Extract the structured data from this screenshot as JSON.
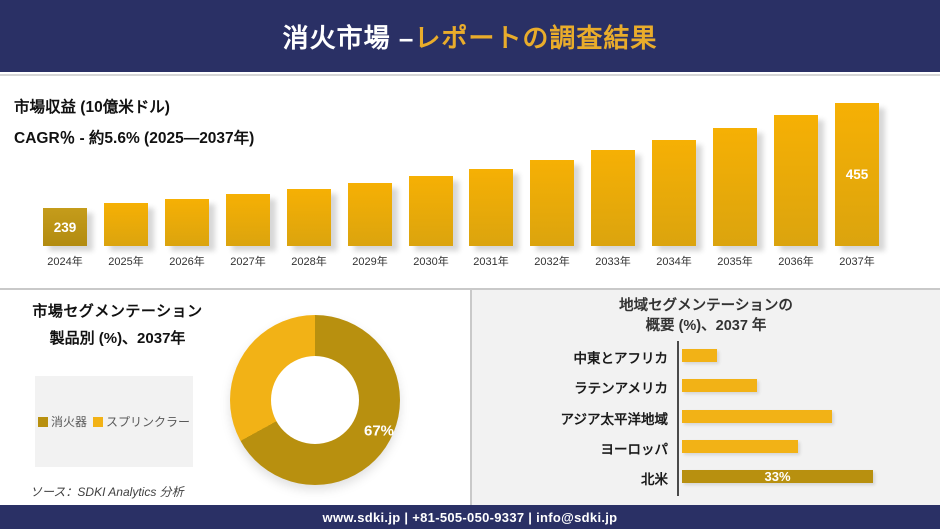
{
  "header": {
    "title_white": "消火市場 –",
    "title_gold": "レポートの調査結果"
  },
  "footer": {
    "text": "www.sdki.jp | +81-505-050-9337 | info@sdki.jp"
  },
  "product_chart": {
    "title_line1": "市場セグメンテーション",
    "title_line2": "製品別 (%)、2037年",
    "legend": [
      {
        "label": "消火器",
        "color": "#B8900F"
      },
      {
        "label": "スプリンクラー",
        "color": "#F2B216"
      }
    ],
    "source": "ソース：SDKI Analytics 分析"
  },
  "regional_chart": {
    "title_line1": "地域セグメンテーションの",
    "title_line2": "概要 (%)、2037 年"
  },
  "colors": {
    "navy": "#2A3065",
    "gold_dark": "#B8900F",
    "amber": "#F2B216",
    "bar_top": "#F6B004",
    "bar_bottom": "#DBA40E",
    "panel_gray": "#F2F2F2",
    "title_gold": "#E9AC2B"
  },
  "chart_data": [
    {
      "type": "bar",
      "title": "市場収益 (10億米ドル)",
      "subtitle": "CAGR％ - 約5.6% (2025―2037年)",
      "x": [
        "2024年",
        "2025年",
        "2026年",
        "2027年",
        "2028年",
        "2029年",
        "2030年",
        "2031年",
        "2032年",
        "2033年",
        "2034年",
        "2035年",
        "2036年",
        "2037年"
      ],
      "values": [
        239,
        249,
        258,
        268,
        279,
        291,
        305,
        320,
        338,
        358,
        379,
        403,
        430,
        455
      ],
      "labeled_points": [
        {
          "index": 0,
          "text": "239"
        },
        {
          "index": 13,
          "text": "455"
        }
      ],
      "ylim": [
        161,
        455
      ],
      "grid": false,
      "axis_hidden": true
    },
    {
      "type": "pie",
      "subtype": "donut",
      "title": "市場セグメンテーション 製品別 (%)、2037年",
      "labels": [
        "消火器",
        "スプリンクラー"
      ],
      "values": [
        67,
        33
      ],
      "shown_label": "67%",
      "legend_position": "left"
    },
    {
      "type": "bar",
      "orientation": "horizontal",
      "title": "地域セグメンテーションの 概要 (%)、2037 年",
      "categories": [
        "中東とアフリカ",
        "ラテンアメリカ",
        "アジア太平洋地域",
        "ヨーロッパ",
        "北米"
      ],
      "values": [
        6,
        13,
        26,
        20,
        33
      ],
      "labeled_points": [
        {
          "index": 4,
          "text": "33%"
        }
      ],
      "xlim": [
        0,
        33
      ],
      "grid": false
    }
  ]
}
